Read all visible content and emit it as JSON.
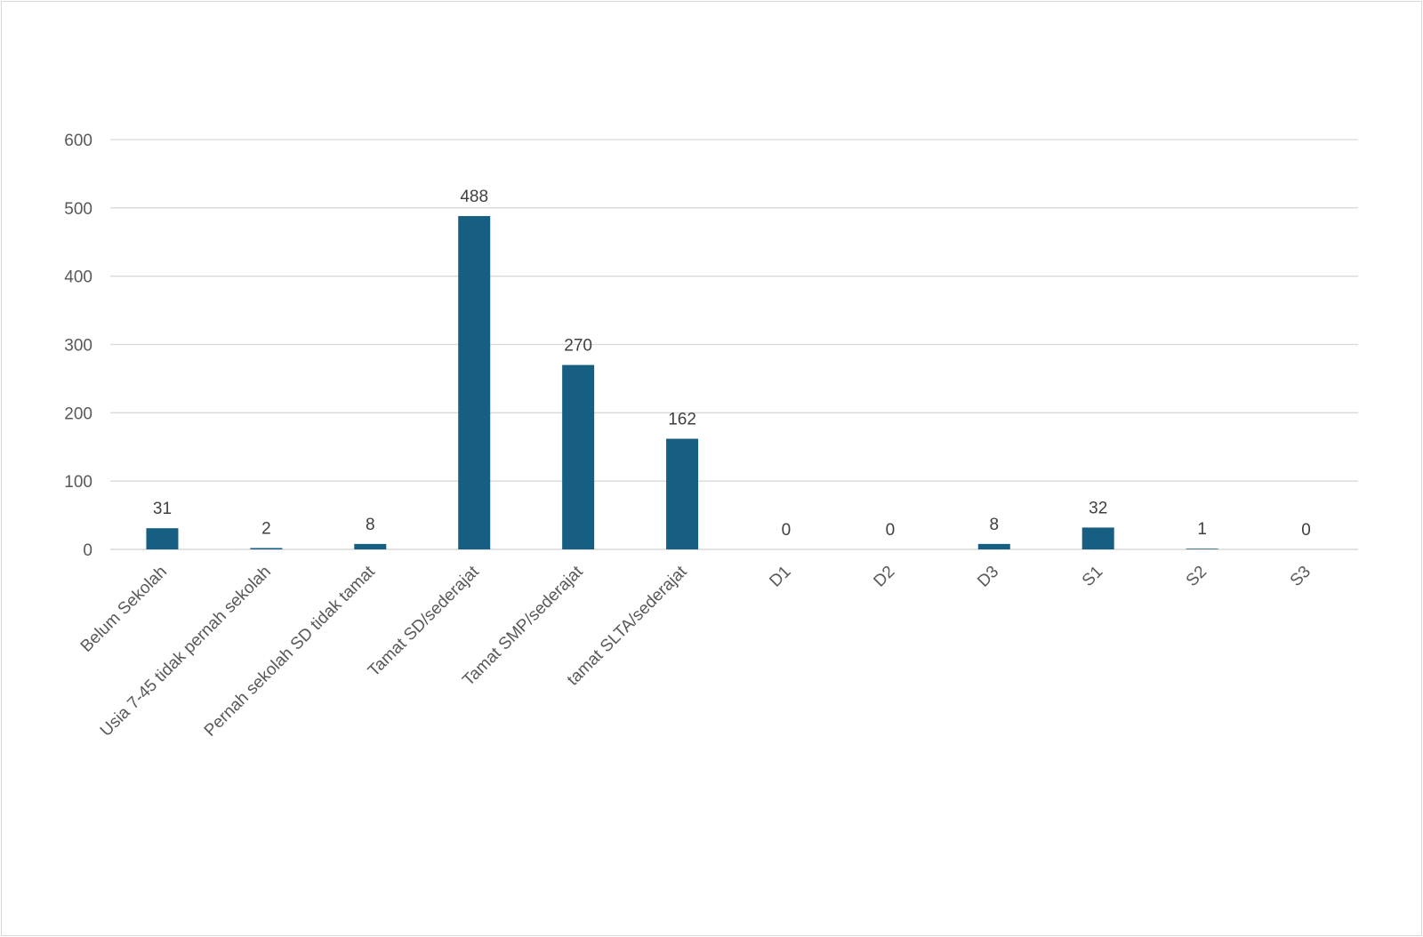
{
  "chart_data": {
    "type": "bar",
    "title": "",
    "xlabel": "",
    "ylabel": "",
    "categories": [
      "Belum Sekolah",
      "Usia 7-45 tidak pernah sekolah",
      "Pernah sekolah SD tidak tamat",
      "Tamat SD/sederajat",
      "Tamat SMP/sederajat",
      "tamat SLTA/sederajat",
      "D1",
      "D2",
      "D3",
      "S1",
      "S2",
      "S3"
    ],
    "values": [
      31,
      2,
      8,
      488,
      270,
      162,
      0,
      0,
      8,
      32,
      1,
      0
    ],
    "ylim": [
      0,
      600
    ],
    "yticks": [
      0,
      100,
      200,
      300,
      400,
      500,
      600
    ],
    "grid": true,
    "legend": "none",
    "data_labels": true,
    "colors": {
      "bar": "#175f82",
      "grid": "#d9d9d9",
      "text": "#595959"
    }
  }
}
